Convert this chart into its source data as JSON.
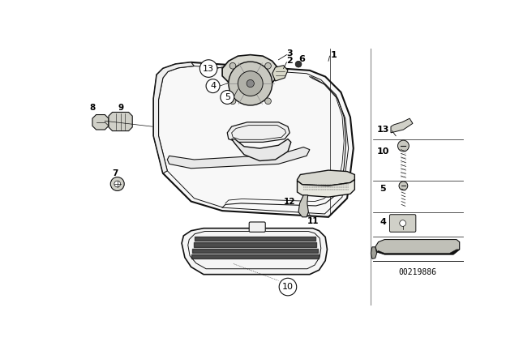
{
  "bg_color": "#ffffff",
  "part_number_code": "00219886",
  "fig_width": 6.4,
  "fig_height": 4.48,
  "dpi": 100,
  "line_color": "#111111",
  "thin_line": 0.6,
  "med_line": 1.0,
  "thick_line": 1.4
}
